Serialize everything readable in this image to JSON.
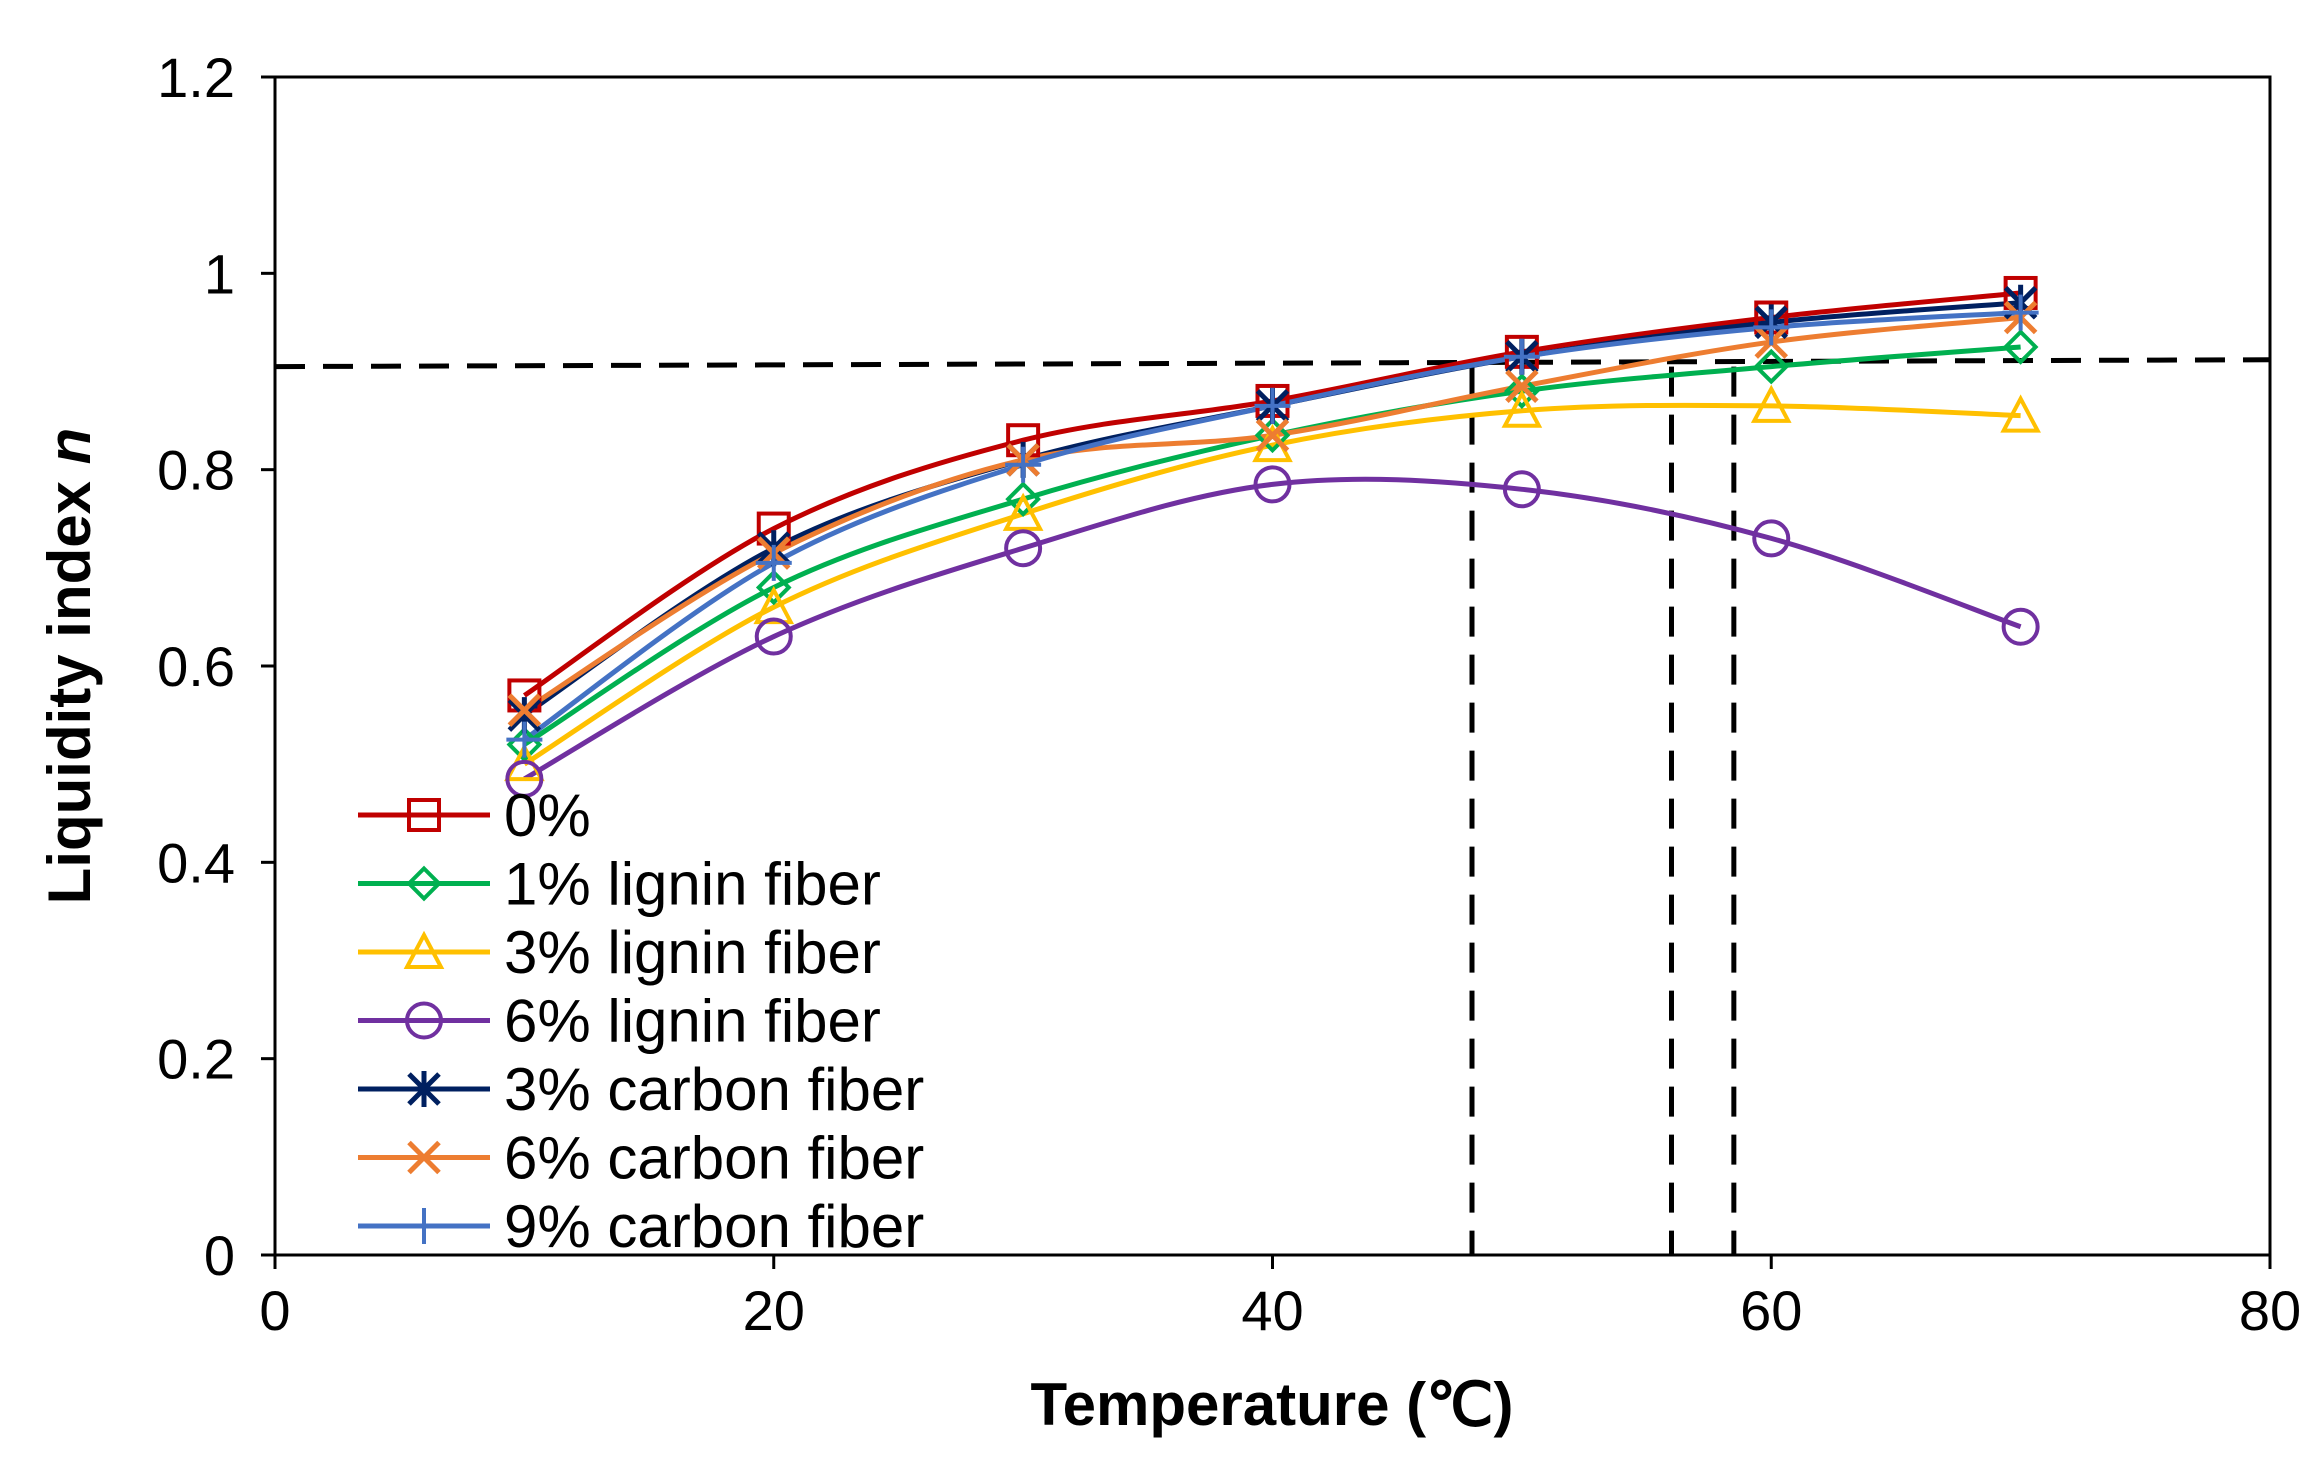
{
  "chart_data": {
    "type": "line",
    "title": "",
    "xlabel": "Temperature (℃)",
    "ylabel": "Liquidity index",
    "ylabel_italic": "n",
    "xlim": [
      0,
      80
    ],
    "ylim": [
      0,
      1.2
    ],
    "xticks": [
      "0",
      "20",
      "40",
      "60",
      "80"
    ],
    "yticks": [
      "0",
      "0.2",
      "0.4",
      "0.6",
      "0.8",
      "1",
      "1.2"
    ],
    "grid": false,
    "legend_position": "bottom-left",
    "x": [
      10,
      20,
      30,
      40,
      50,
      60,
      70
    ],
    "series": [
      {
        "name": "0%",
        "color": "#C00000",
        "marker": "square",
        "values": [
          0.57,
          0.74,
          0.83,
          0.87,
          0.92,
          0.955,
          0.98
        ]
      },
      {
        "name": "1% lignin fiber",
        "color": "#00B050",
        "marker": "diamond",
        "values": [
          0.52,
          0.68,
          0.77,
          0.835,
          0.88,
          0.905,
          0.925
        ]
      },
      {
        "name": "3% lignin fiber",
        "color": "#FFC000",
        "marker": "triangle",
        "values": [
          0.5,
          0.66,
          0.755,
          0.825,
          0.86,
          0.865,
          0.855
        ]
      },
      {
        "name": "6% lignin fiber",
        "color": "#7030A0",
        "marker": "circle",
        "values": [
          0.485,
          0.63,
          0.72,
          0.785,
          0.78,
          0.73,
          0.64
        ]
      },
      {
        "name": "3% carbon fiber",
        "color": "#002060",
        "marker": "asterisk",
        "values": [
          0.55,
          0.72,
          0.81,
          0.865,
          0.915,
          0.95,
          0.97
        ]
      },
      {
        "name": "6% carbon fiber",
        "color": "#ED7D31",
        "marker": "x",
        "values": [
          0.555,
          0.715,
          0.81,
          0.835,
          0.885,
          0.93,
          0.955
        ]
      },
      {
        "name": "9% carbon fiber",
        "color": "#4472C4",
        "marker": "plus",
        "values": [
          0.525,
          0.705,
          0.805,
          0.865,
          0.915,
          0.945,
          0.96
        ]
      }
    ],
    "annotations": [
      {
        "type": "dashed-line",
        "name": "threshold-line",
        "x1": 0,
        "y1": 0.905,
        "x2": 80,
        "y2": 0.912
      },
      {
        "type": "dashed-line",
        "name": "dashed-drop-1",
        "x1": 48,
        "y1": 0.905,
        "x2": 48,
        "y2": 0
      },
      {
        "type": "dashed-line",
        "name": "dashed-drop-2",
        "x1": 56,
        "y1": 0.905,
        "x2": 56,
        "y2": 0
      },
      {
        "type": "dashed-line",
        "name": "dashed-drop-3",
        "x1": 58.5,
        "y1": 0.905,
        "x2": 58.5,
        "y2": 0
      }
    ]
  }
}
